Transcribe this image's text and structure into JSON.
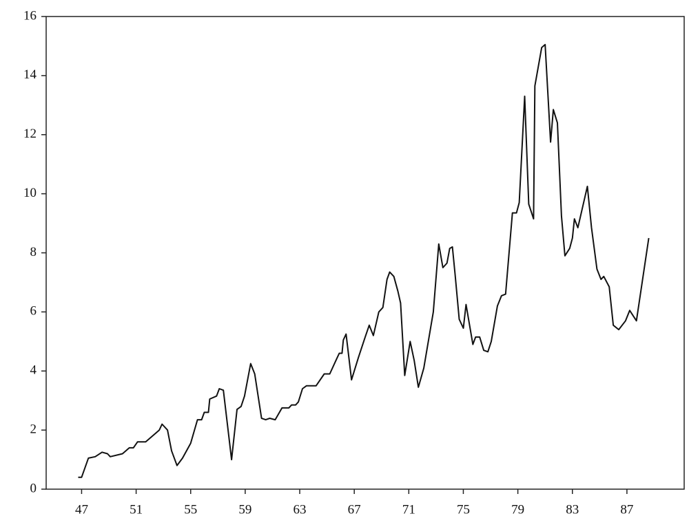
{
  "chart_data": {
    "type": "line",
    "color": "#111111",
    "x": [
      46.75,
      47,
      47.5,
      48,
      48.5,
      48.9,
      49.1,
      50,
      50.5,
      50.8,
      51.1,
      51.7,
      52.7,
      52.9,
      53.3,
      53.6,
      54.0,
      54.4,
      55.0,
      55.5,
      55.8,
      56.0,
      56.3,
      56.4,
      56.9,
      57.1,
      57.4,
      58.0,
      58.4,
      58.7,
      58.95,
      59.4,
      59.7,
      60.2,
      60.5,
      60.8,
      61.2,
      61.7,
      62.2,
      62.4,
      62.7,
      62.9,
      63.2,
      63.5,
      63.9,
      64.2,
      64.8,
      65.2,
      65.7,
      65.9,
      66.1,
      66.2,
      66.4,
      66.8,
      67.3,
      67.8,
      68.1,
      68.4,
      68.8,
      69.1,
      69.4,
      69.6,
      69.9,
      70.2,
      70.4,
      70.7,
      71.1,
      71.4,
      71.7,
      72.1,
      72.8,
      73.2,
      73.5,
      73.8,
      74.0,
      74.2,
      74.4,
      74.7,
      75.0,
      75.2,
      75.7,
      75.9,
      76.2,
      76.5,
      76.8,
      77.05,
      77.5,
      77.8,
      78.1,
      78.6,
      78.9,
      79.1,
      79.5,
      79.8,
      80.15,
      80.25,
      80.75,
      81.0,
      81.4,
      81.6,
      81.9,
      82.2,
      82.45,
      82.8,
      83.0,
      83.15,
      83.4,
      84.1,
      84.4,
      84.8,
      85.1,
      85.3,
      85.7,
      86.0,
      86.4,
      86.9,
      87.2,
      87.7,
      88.6
    ],
    "values": [
      0.4,
      0.4,
      1.05,
      1.1,
      1.25,
      1.2,
      1.1,
      1.2,
      1.4,
      1.4,
      1.6,
      1.6,
      2.0,
      2.2,
      2.0,
      1.3,
      0.8,
      1.05,
      1.55,
      2.35,
      2.35,
      2.6,
      2.6,
      3.05,
      3.15,
      3.4,
      3.35,
      1.0,
      2.7,
      2.8,
      3.15,
      4.25,
      3.9,
      2.4,
      2.35,
      2.4,
      2.35,
      2.75,
      2.75,
      2.85,
      2.85,
      2.95,
      3.4,
      3.5,
      3.5,
      3.5,
      3.9,
      3.9,
      4.4,
      4.6,
      4.6,
      5.05,
      5.25,
      3.7,
      4.45,
      5.15,
      5.55,
      5.2,
      6.0,
      6.15,
      7.1,
      7.35,
      7.2,
      6.7,
      6.3,
      3.85,
      5.0,
      4.35,
      3.45,
      4.1,
      6.0,
      8.3,
      7.5,
      7.65,
      8.15,
      8.2,
      7.25,
      5.75,
      5.45,
      6.25,
      4.9,
      5.15,
      5.15,
      4.7,
      4.65,
      5.0,
      6.2,
      6.55,
      6.6,
      9.35,
      9.35,
      9.7,
      13.3,
      9.65,
      9.15,
      13.65,
      14.95,
      15.05,
      11.75,
      12.85,
      12.4,
      9.25,
      7.9,
      8.15,
      8.5,
      9.15,
      8.85,
      10.25,
      8.85,
      7.45,
      7.1,
      7.2,
      6.85,
      5.55,
      5.4,
      5.7,
      6.05,
      5.7,
      8.5
    ],
    "xlim": [
      44.4,
      91.2
    ],
    "xticks": [
      47,
      51,
      55,
      59,
      63,
      67,
      71,
      75,
      79,
      83,
      87
    ],
    "ylim": [
      0,
      16
    ],
    "yticks": [
      0,
      2,
      4,
      6,
      8,
      10,
      12,
      14,
      16
    ]
  }
}
